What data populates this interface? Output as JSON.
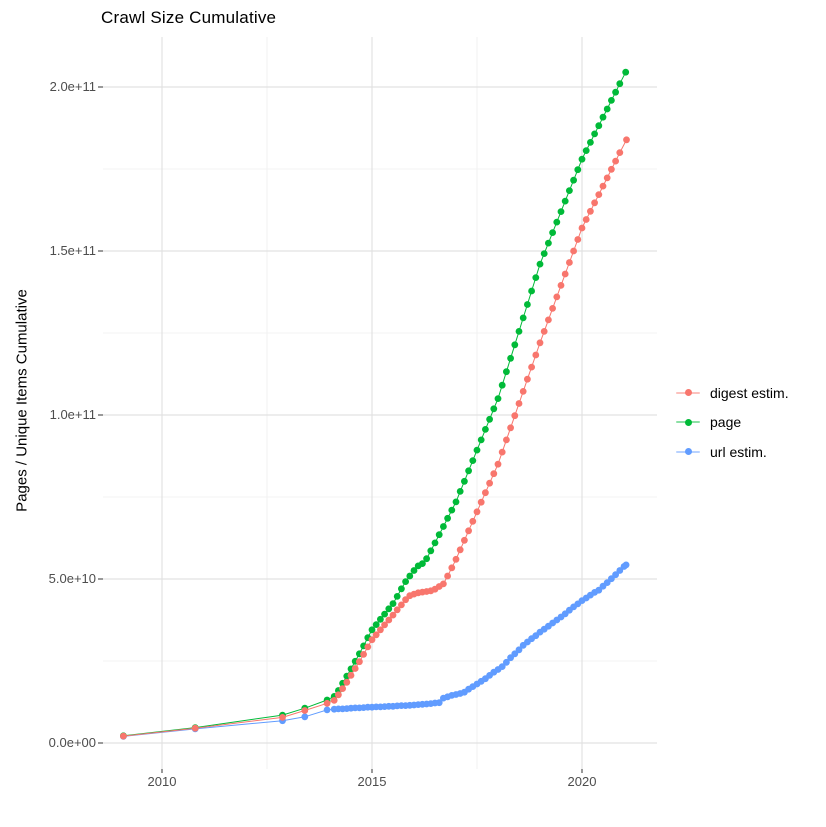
{
  "title": "Crawl Size Cumulative",
  "chart_data": {
    "type": "scatter",
    "title": "Crawl Size Cumulative",
    "xlabel": "",
    "ylabel": "Pages / Unique Items Cumulative",
    "grid": true,
    "legend_position": "right",
    "background": "#ffffff",
    "gridline_color_major": "#e2e2e2",
    "gridline_color_minor": "#efefef",
    "x_axis": {
      "range": [
        2008.5,
        2021.76
      ],
      "ticks": [
        {
          "label": "2010",
          "value": 2010
        },
        {
          "label": "2015",
          "value": 2015
        },
        {
          "label": "2020",
          "value": 2020
        }
      ],
      "minor_ticks": [
        2012.5,
        2017.5
      ]
    },
    "y_axis": {
      "unit": "billions (1e9) of pages / unique items",
      "range_e9": [
        -8,
        215
      ],
      "ticks": [
        {
          "label": "0.0e+00",
          "value_e9": 0
        },
        {
          "label": "5.0e+10",
          "value_e9": 50
        },
        {
          "label": "1.0e+11",
          "value_e9": 100
        },
        {
          "label": "1.5e+11",
          "value_e9": 150
        },
        {
          "label": "2.0e+11",
          "value_e9": 200
        }
      ],
      "minor_ticks_e9": [
        25,
        75,
        125,
        175
      ]
    },
    "series": [
      {
        "name": "digest estim.",
        "color": "#F8766D",
        "points": [
          [
            2009.08,
            2.1
          ],
          [
            2010.79,
            4.5
          ],
          [
            2012.87,
            7.8
          ],
          [
            2013.4,
            9.9
          ],
          [
            2013.93,
            12.1
          ],
          [
            2014.1,
            13.0
          ],
          [
            2014.2,
            14.7
          ],
          [
            2014.3,
            16.6
          ],
          [
            2014.4,
            18.5
          ],
          [
            2014.5,
            20.6
          ],
          [
            2014.6,
            22.7
          ],
          [
            2014.7,
            24.8
          ],
          [
            2014.8,
            27.0
          ],
          [
            2014.9,
            29.3
          ],
          [
            2015.0,
            31.5
          ],
          [
            2015.1,
            33.0
          ],
          [
            2015.2,
            34.5
          ],
          [
            2015.3,
            36.0
          ],
          [
            2015.4,
            37.5
          ],
          [
            2015.5,
            39.0
          ],
          [
            2015.6,
            40.6
          ],
          [
            2015.7,
            42.1
          ],
          [
            2015.8,
            43.7
          ],
          [
            2015.9,
            44.9
          ],
          [
            2016.0,
            45.4
          ],
          [
            2016.1,
            45.8
          ],
          [
            2016.2,
            46.0
          ],
          [
            2016.3,
            46.2
          ],
          [
            2016.4,
            46.4
          ],
          [
            2016.5,
            46.9
          ],
          [
            2016.6,
            47.7
          ],
          [
            2016.7,
            48.5
          ],
          [
            2016.8,
            50.9
          ],
          [
            2016.9,
            53.4
          ],
          [
            2017.0,
            56.0
          ],
          [
            2017.1,
            58.9
          ],
          [
            2017.2,
            61.8
          ],
          [
            2017.3,
            64.7
          ],
          [
            2017.4,
            67.6
          ],
          [
            2017.5,
            70.5
          ],
          [
            2017.6,
            73.4
          ],
          [
            2017.7,
            76.3
          ],
          [
            2017.8,
            79.2
          ],
          [
            2017.9,
            82.1
          ],
          [
            2018.0,
            85.0
          ],
          [
            2018.1,
            88.7
          ],
          [
            2018.2,
            92.4
          ],
          [
            2018.3,
            96.1
          ],
          [
            2018.4,
            99.8
          ],
          [
            2018.5,
            103.5
          ],
          [
            2018.6,
            107.2
          ],
          [
            2018.7,
            110.9
          ],
          [
            2018.8,
            114.6
          ],
          [
            2018.9,
            118.3
          ],
          [
            2019.0,
            122.0
          ],
          [
            2019.1,
            125.5
          ],
          [
            2019.2,
            129.0
          ],
          [
            2019.3,
            132.5
          ],
          [
            2019.4,
            136.0
          ],
          [
            2019.5,
            139.5
          ],
          [
            2019.6,
            143.0
          ],
          [
            2019.7,
            146.5
          ],
          [
            2019.8,
            150.0
          ],
          [
            2019.9,
            153.5
          ],
          [
            2020.0,
            157.0
          ],
          [
            2020.1,
            159.6
          ],
          [
            2020.2,
            162.1
          ],
          [
            2020.3,
            164.7
          ],
          [
            2020.4,
            167.2
          ],
          [
            2020.5,
            169.8
          ],
          [
            2020.6,
            172.3
          ],
          [
            2020.7,
            174.9
          ],
          [
            2020.8,
            177.4
          ],
          [
            2020.9,
            180.0
          ],
          [
            2021.06,
            183.9
          ]
        ]
      },
      {
        "name": "page",
        "color": "#00BA38",
        "points": [
          [
            2009.08,
            2.2
          ],
          [
            2010.79,
            4.7
          ],
          [
            2012.87,
            8.5
          ],
          [
            2013.4,
            10.6
          ],
          [
            2013.93,
            13.1
          ],
          [
            2014.1,
            14.2
          ],
          [
            2014.2,
            16.0
          ],
          [
            2014.3,
            18.2
          ],
          [
            2014.4,
            20.4
          ],
          [
            2014.5,
            22.6
          ],
          [
            2014.6,
            24.9
          ],
          [
            2014.7,
            27.2
          ],
          [
            2014.8,
            29.6
          ],
          [
            2014.9,
            32.1
          ],
          [
            2015.0,
            34.5
          ],
          [
            2015.1,
            36.1
          ],
          [
            2015.2,
            37.7
          ],
          [
            2015.3,
            39.3
          ],
          [
            2015.4,
            40.9
          ],
          [
            2015.5,
            42.5
          ],
          [
            2015.6,
            44.7
          ],
          [
            2015.7,
            47.0
          ],
          [
            2015.8,
            49.2
          ],
          [
            2015.9,
            50.9
          ],
          [
            2016.0,
            52.6
          ],
          [
            2016.1,
            54.0
          ],
          [
            2016.2,
            54.7
          ],
          [
            2016.3,
            56.2
          ],
          [
            2016.4,
            58.6
          ],
          [
            2016.5,
            61.0
          ],
          [
            2016.6,
            63.5
          ],
          [
            2016.7,
            66.0
          ],
          [
            2016.8,
            68.5
          ],
          [
            2016.9,
            71.0
          ],
          [
            2017.0,
            73.5
          ],
          [
            2017.1,
            76.7
          ],
          [
            2017.2,
            79.8
          ],
          [
            2017.3,
            83.0
          ],
          [
            2017.4,
            86.1
          ],
          [
            2017.5,
            89.3
          ],
          [
            2017.6,
            92.4
          ],
          [
            2017.7,
            95.6
          ],
          [
            2017.8,
            98.7
          ],
          [
            2017.9,
            101.9
          ],
          [
            2018.0,
            105.0
          ],
          [
            2018.1,
            109.1
          ],
          [
            2018.2,
            113.2
          ],
          [
            2018.3,
            117.3
          ],
          [
            2018.4,
            121.4
          ],
          [
            2018.5,
            125.5
          ],
          [
            2018.6,
            129.6
          ],
          [
            2018.7,
            133.7
          ],
          [
            2018.8,
            137.8
          ],
          [
            2018.9,
            141.9
          ],
          [
            2019.0,
            146.0
          ],
          [
            2019.1,
            149.2
          ],
          [
            2019.2,
            152.4
          ],
          [
            2019.3,
            155.6
          ],
          [
            2019.4,
            158.8
          ],
          [
            2019.5,
            162.0
          ],
          [
            2019.6,
            165.2
          ],
          [
            2019.7,
            168.4
          ],
          [
            2019.8,
            171.6
          ],
          [
            2019.9,
            174.8
          ],
          [
            2020.0,
            178.0
          ],
          [
            2020.1,
            180.6
          ],
          [
            2020.2,
            183.1
          ],
          [
            2020.3,
            185.7
          ],
          [
            2020.4,
            188.2
          ],
          [
            2020.5,
            190.8
          ],
          [
            2020.6,
            193.3
          ],
          [
            2020.7,
            195.9
          ],
          [
            2020.8,
            198.4
          ],
          [
            2020.9,
            201.0
          ],
          [
            2021.04,
            204.5
          ]
        ]
      },
      {
        "name": "url estim.",
        "color": "#619CFF",
        "points": [
          [
            2009.08,
            2.0
          ],
          [
            2010.79,
            4.3
          ],
          [
            2012.87,
            6.8
          ],
          [
            2013.4,
            8.0
          ],
          [
            2013.93,
            10.1
          ],
          [
            2014.1,
            10.3
          ],
          [
            2014.2,
            10.4
          ],
          [
            2014.3,
            10.4
          ],
          [
            2014.4,
            10.5
          ],
          [
            2014.5,
            10.6
          ],
          [
            2014.6,
            10.7
          ],
          [
            2014.7,
            10.7
          ],
          [
            2014.8,
            10.8
          ],
          [
            2014.9,
            10.9
          ],
          [
            2015.0,
            10.9
          ],
          [
            2015.1,
            11.0
          ],
          [
            2015.2,
            11.0
          ],
          [
            2015.3,
            11.1
          ],
          [
            2015.4,
            11.2
          ],
          [
            2015.5,
            11.2
          ],
          [
            2015.6,
            11.3
          ],
          [
            2015.7,
            11.4
          ],
          [
            2015.8,
            11.4
          ],
          [
            2015.9,
            11.5
          ],
          [
            2016.0,
            11.6
          ],
          [
            2016.1,
            11.7
          ],
          [
            2016.2,
            11.8
          ],
          [
            2016.3,
            11.9
          ],
          [
            2016.4,
            12.0
          ],
          [
            2016.5,
            12.2
          ],
          [
            2016.6,
            12.3
          ],
          [
            2016.7,
            13.7
          ],
          [
            2016.8,
            14.1
          ],
          [
            2016.9,
            14.5
          ],
          [
            2017.0,
            14.8
          ],
          [
            2017.1,
            15.1
          ],
          [
            2017.2,
            15.5
          ],
          [
            2017.3,
            16.4
          ],
          [
            2017.4,
            17.2
          ],
          [
            2017.5,
            18.0
          ],
          [
            2017.6,
            18.8
          ],
          [
            2017.7,
            19.6
          ],
          [
            2017.8,
            20.6
          ],
          [
            2017.9,
            21.6
          ],
          [
            2018.0,
            22.4
          ],
          [
            2018.1,
            23.3
          ],
          [
            2018.2,
            24.6
          ],
          [
            2018.3,
            26.0
          ],
          [
            2018.4,
            27.2
          ],
          [
            2018.5,
            28.4
          ],
          [
            2018.6,
            29.8
          ],
          [
            2018.7,
            30.8
          ],
          [
            2018.8,
            31.8
          ],
          [
            2018.9,
            32.7
          ],
          [
            2019.0,
            33.8
          ],
          [
            2019.1,
            34.7
          ],
          [
            2019.2,
            35.6
          ],
          [
            2019.3,
            36.6
          ],
          [
            2019.4,
            37.5
          ],
          [
            2019.5,
            38.4
          ],
          [
            2019.6,
            39.4
          ],
          [
            2019.7,
            40.5
          ],
          [
            2019.8,
            41.5
          ],
          [
            2019.9,
            42.4
          ],
          [
            2020.0,
            43.4
          ],
          [
            2020.1,
            44.2
          ],
          [
            2020.2,
            45.1
          ],
          [
            2020.3,
            45.9
          ],
          [
            2020.4,
            46.6
          ],
          [
            2020.5,
            47.8
          ],
          [
            2020.6,
            48.9
          ],
          [
            2020.7,
            50.1
          ],
          [
            2020.8,
            51.3
          ],
          [
            2020.9,
            52.6
          ],
          [
            2021.0,
            53.8
          ],
          [
            2021.05,
            54.3
          ]
        ]
      }
    ]
  }
}
